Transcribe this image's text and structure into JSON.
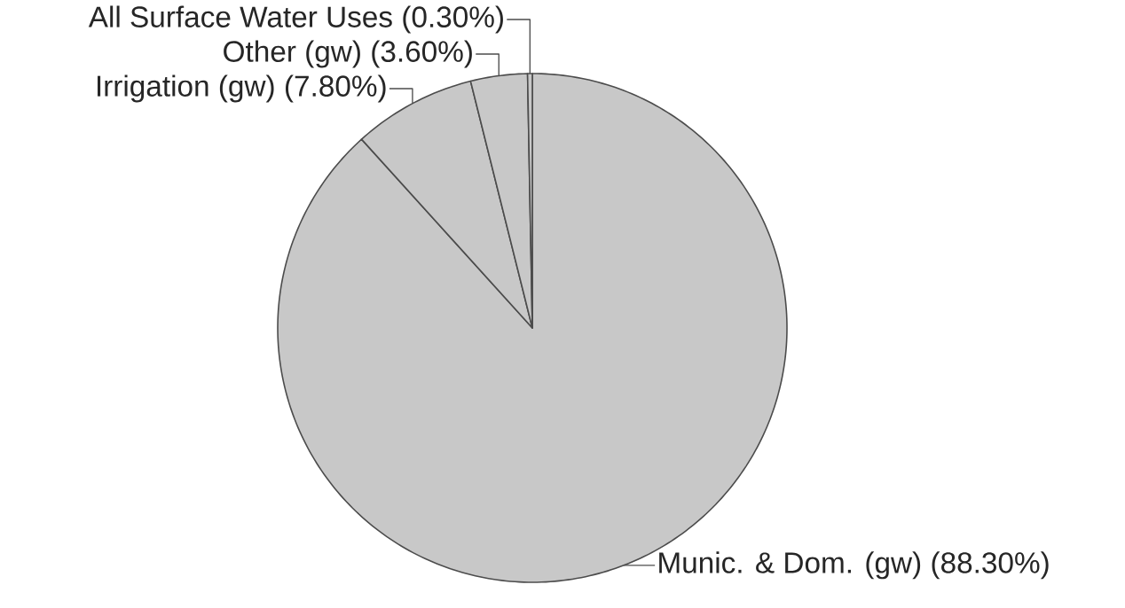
{
  "chart_data": {
    "type": "pie",
    "categories": [
      "Munic. & Dom. (gw)",
      "Irrigation (gw)",
      "Other (gw)",
      "All Surface Water Uses"
    ],
    "values": [
      88.3,
      7.8,
      3.6,
      0.3
    ],
    "value_labels": [
      "(88.30%)",
      "(7.80%)",
      "(3.60%)",
      "(0.30%)"
    ],
    "colors": [
      "#c8c8c8",
      "#c8c8c8",
      "#c8c8c8",
      "#c8c8c8"
    ]
  }
}
